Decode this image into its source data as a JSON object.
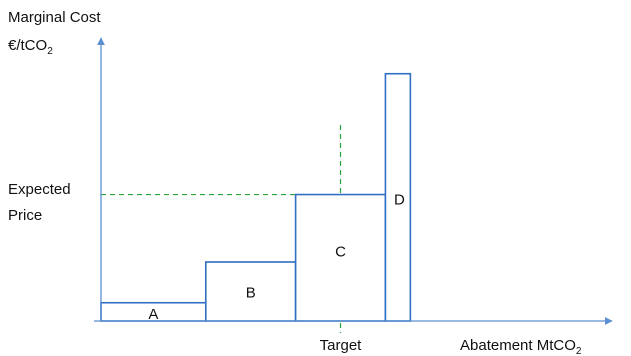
{
  "chart_data": {
    "type": "bar",
    "y_label_lines": [
      "Marginal Cost",
      "€/tCO"
    ],
    "y_label_sub": "2",
    "x_label_main": "Abatement MtCO",
    "x_label_sub": "2",
    "expected_price_lines": [
      "Expected",
      "Price"
    ],
    "target_label": "Target",
    "bars": [
      {
        "label": "A",
        "x0": 0,
        "x1": 1.05,
        "y": 0.065
      },
      {
        "label": "B",
        "x0": 1.05,
        "x1": 1.95,
        "y": 0.21
      },
      {
        "label": "C",
        "x0": 1.95,
        "x1": 2.85,
        "y": 0.45
      },
      {
        "label": "D",
        "x0": 2.85,
        "x1": 3.1,
        "y": 0.88
      }
    ],
    "expected_price": 0.45,
    "target": 2.4,
    "xlim": [
      0,
      5
    ],
    "ylim": [
      0,
      1
    ],
    "colors": {
      "bars": "#2f6fc4",
      "axes": "#5b8fd1",
      "guides": "#28a33c"
    }
  }
}
